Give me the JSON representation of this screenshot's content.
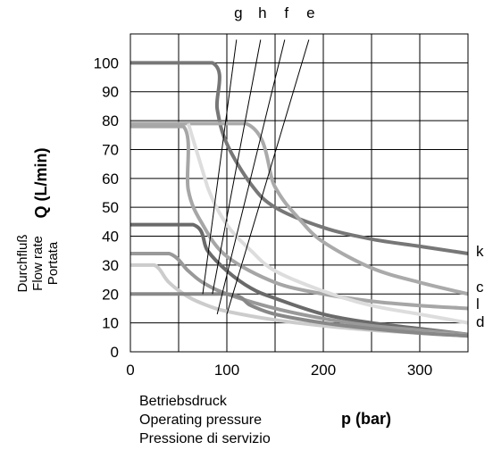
{
  "chart_data": {
    "type": "line",
    "xlabel": "p (bar)",
    "ylabel": "Q (L/min)",
    "xlabel_lines": [
      "Betriebsdruck",
      "Operating pressure",
      "Pressione di servizio"
    ],
    "ylabel_lines": [
      "Durchfluß",
      "Flow rate",
      "Portata"
    ],
    "xlim": [
      0,
      350
    ],
    "ylim": [
      0,
      110
    ],
    "x_ticks": [
      0,
      100,
      200,
      300
    ],
    "y_ticks": [
      0,
      10,
      20,
      30,
      40,
      50,
      60,
      70,
      80,
      90,
      100
    ],
    "grid": true,
    "series": [
      {
        "name": "k",
        "color": "#777777",
        "flat_value": 100,
        "knee_x": 85,
        "x": [
          0,
          85,
          90,
          100,
          125,
          150,
          200,
          250,
          300,
          350
        ],
        "y": [
          100,
          100,
          84,
          72,
          58,
          50,
          43,
          39,
          36.5,
          34
        ]
      },
      {
        "name": "c",
        "color": "#aaaaaa",
        "flat_value": 79,
        "knee_x": 120,
        "x": [
          0,
          120,
          150,
          175,
          200,
          250,
          300,
          350
        ],
        "y": [
          79,
          79,
          57,
          46,
          38,
          29,
          24,
          20
        ]
      },
      {
        "name": "l",
        "color": "#a6a6a6",
        "flat_value": 78,
        "knee_x": 55,
        "x": [
          0,
          55,
          60,
          75,
          100,
          150,
          200,
          250,
          300,
          350
        ],
        "y": [
          78,
          78,
          56,
          44,
          33,
          24,
          20,
          17.5,
          16,
          15
        ]
      },
      {
        "name": "d",
        "color": "#dddddd",
        "flat_value": 79,
        "knee_x": 60,
        "x": [
          60,
          80,
          100,
          125,
          150,
          200,
          250,
          300,
          350
        ],
        "y": [
          79,
          57,
          44,
          35,
          28,
          21,
          16,
          13,
          10
        ]
      },
      {
        "name": "",
        "color": "#6a6a6a",
        "flat_value": 44,
        "knee_x": 65,
        "x": [
          0,
          65,
          80,
          100,
          125,
          150,
          200,
          250,
          300,
          350
        ],
        "y": [
          44,
          44,
          35,
          28,
          22,
          18.5,
          13,
          10,
          8,
          6
        ]
      },
      {
        "name": "",
        "color": "#999999",
        "flat_value": 34,
        "knee_x": 40,
        "x": [
          0,
          40,
          60,
          75,
          100,
          150,
          200,
          250,
          300,
          350
        ],
        "y": [
          34,
          34,
          28,
          24,
          20,
          15,
          11.5,
          9,
          7.5,
          6
        ]
      },
      {
        "name": "",
        "color": "#cccccc",
        "flat_value": 30,
        "knee_x": 25,
        "x": [
          0,
          25,
          40,
          60,
          80,
          100,
          150,
          200,
          250,
          300,
          350
        ],
        "y": [
          30,
          30,
          24,
          19,
          16,
          14,
          11,
          9,
          7.5,
          6.5,
          5.5
        ]
      },
      {
        "name": "",
        "color": "#888888",
        "flat_value": 20,
        "knee_x": 100,
        "x": [
          0,
          100,
          125,
          150,
          200,
          250,
          300,
          350
        ],
        "y": [
          20,
          20,
          16,
          13,
          10,
          8,
          6.5,
          5.5
        ]
      }
    ],
    "guide_lines": [
      {
        "name": "g",
        "x": [
          75,
          110
        ],
        "y": [
          20,
          108
        ]
      },
      {
        "name": "h",
        "x": [
          85,
          135
        ],
        "y": [
          20,
          108
        ]
      },
      {
        "name": "f",
        "x": [
          90,
          160
        ],
        "y": [
          13,
          108
        ]
      },
      {
        "name": "e",
        "x": [
          100,
          185
        ],
        "y": [
          13,
          108
        ]
      }
    ]
  }
}
